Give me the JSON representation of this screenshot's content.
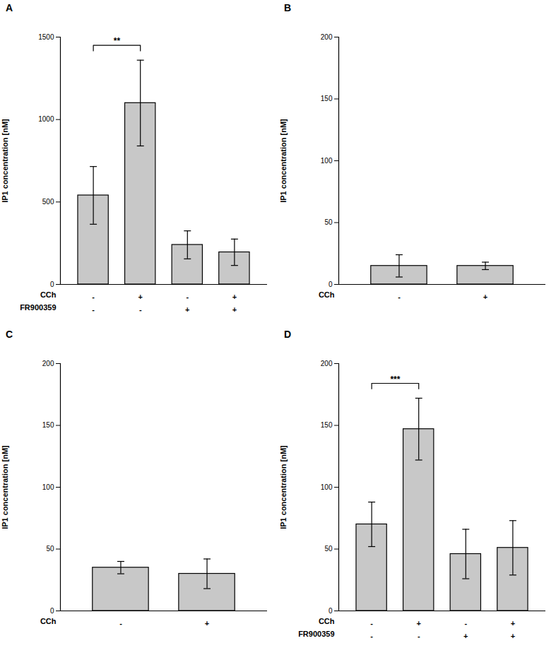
{
  "chart_data": [
    {
      "type": "bar",
      "title": "A",
      "categories": [
        null,
        null,
        null,
        null
      ],
      "values": [
        540,
        1100,
        240,
        195
      ],
      "errors": [
        175,
        260,
        85,
        80
      ],
      "ylabel": "IP1 concentration [nM]",
      "ylim": [
        0,
        1500
      ],
      "yticks": [
        0,
        500,
        1000,
        1500
      ],
      "color": "#c8c8c8",
      "grid": false,
      "tick_labels": "y",
      "label_rows": [
        {
          "label": "CCh",
          "labels": [
            "-",
            "+",
            "-",
            "+"
          ]
        },
        {
          "label": "FR900359",
          "labels": [
            "-",
            "-",
            "+",
            "+"
          ]
        }
      ],
      "annotations": [
        {
          "text": "**",
          "between": [
            0,
            1
          ]
        }
      ]
    },
    {
      "type": "bar",
      "title": "B",
      "categories": [
        null,
        null
      ],
      "values": [
        15,
        15
      ],
      "errors": [
        9,
        3
      ],
      "ylabel": "IP1 concentration [nM]",
      "ylim": [
        0,
        200
      ],
      "yticks": [
        0,
        50,
        100,
        150,
        200
      ],
      "color": "#c8c8c8",
      "grid": false,
      "tick_labels": "y",
      "label_rows": [
        {
          "label": "CCh",
          "labels": [
            "-",
            "+"
          ]
        }
      ],
      "annotations": []
    },
    {
      "type": "bar",
      "title": "C",
      "categories": [
        null,
        null
      ],
      "values": [
        35,
        30
      ],
      "errors": [
        5,
        12
      ],
      "ylabel": "IP1 concentration [nM]",
      "ylim": [
        0,
        200
      ],
      "yticks": [
        0,
        50,
        100,
        150,
        200
      ],
      "color": "#c8c8c8",
      "grid": false,
      "tick_labels": "y",
      "label_rows": [
        {
          "label": "CCh",
          "labels": [
            "-",
            "+"
          ]
        }
      ],
      "annotations": []
    },
    {
      "type": "bar",
      "title": "D",
      "categories": [
        null,
        null,
        null,
        null
      ],
      "values": [
        70,
        147,
        46,
        51
      ],
      "errors": [
        18,
        25,
        20,
        22
      ],
      "ylabel": "IP1 concentration [nM]",
      "ylim": [
        0,
        200
      ],
      "yticks": [
        0,
        50,
        100,
        150,
        200
      ],
      "color": "#c8c8c8",
      "grid": false,
      "tick_labels": "y",
      "label_rows": [
        {
          "label": "CCh",
          "labels": [
            "-",
            "+",
            "-",
            "+"
          ]
        },
        {
          "label": "FR900359",
          "labels": [
            "-",
            "-",
            "+",
            "+"
          ]
        }
      ],
      "annotations": [
        {
          "text": "***",
          "between": [
            0,
            1
          ]
        }
      ]
    }
  ]
}
